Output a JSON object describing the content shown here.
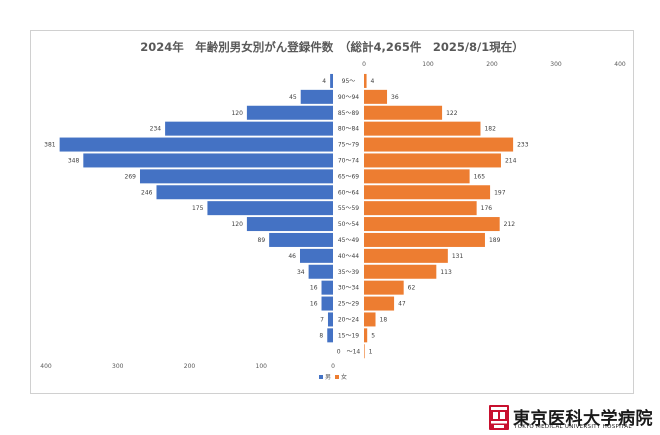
{
  "chart_data": {
    "type": "bar",
    "orientation": "horizontal",
    "title": "2024年　年齢別男女別がん登録件数　（総計4,265件　2025/8/1現在）",
    "categories": [
      "95～",
      "90～94",
      "85～89",
      "80～84",
      "75～79",
      "70～74",
      "65～69",
      "60～64",
      "55～59",
      "50～54",
      "45～49",
      "40～44",
      "35～39",
      "30～34",
      "25～29",
      "20～24",
      "15～19",
      "0　～14"
    ],
    "series": [
      {
        "name": "男",
        "color": "#4472C4",
        "values": [
          4,
          45,
          120,
          234,
          381,
          348,
          269,
          246,
          175,
          120,
          89,
          46,
          34,
          16,
          16,
          7,
          8,
          0
        ],
        "labels": [
          "4",
          "45",
          "120",
          "234",
          "381",
          "348",
          "269",
          "246",
          "175",
          "120",
          "89",
          "46",
          "34",
          "16",
          "16",
          "7",
          "8",
          ""
        ]
      },
      {
        "name": "女",
        "color": "#ED7D31",
        "values": [
          4,
          36,
          122,
          182,
          233,
          214,
          165,
          197,
          176,
          212,
          189,
          131,
          113,
          62,
          47,
          18,
          5,
          1
        ],
        "labels": [
          "4",
          "36",
          "122",
          "182",
          "233",
          "214",
          "165",
          "197",
          "176",
          "212",
          "189",
          "131",
          "113",
          "62",
          "47",
          "18",
          "5",
          "1"
        ]
      }
    ],
    "left_axis_ticks": [
      "400",
      "300",
      "200",
      "100",
      "0"
    ],
    "right_axis_ticks": [
      "0",
      "100",
      "200",
      "300",
      "400"
    ],
    "xlim": [
      0,
      400
    ],
    "grid": false,
    "legend_position": "bottom"
  },
  "logo": {
    "name": "東京医科大学病院",
    "sub": "TOKYO MEDICAL UNIVERSITY HOSPITAL",
    "mark_color": "#c8102e"
  }
}
